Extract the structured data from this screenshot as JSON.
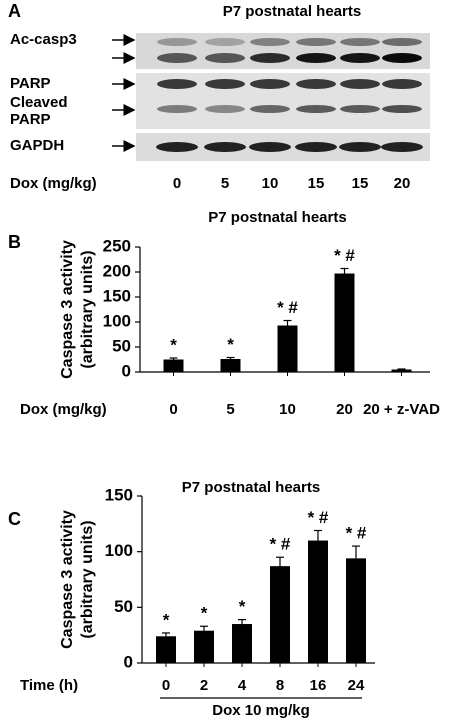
{
  "panel_labels": [
    "A",
    "B",
    "C"
  ],
  "blot": {
    "title": "P7 postnatal hearts",
    "row_labels": [
      [
        "Ac-casp3"
      ],
      [
        "PARP"
      ],
      [
        "Cleaved",
        "PARP"
      ],
      [
        "GAPDH"
      ]
    ],
    "x_label": "Dox (mg/kg)",
    "lanes": [
      "0",
      "5",
      "10",
      "15",
      "15",
      "20"
    ]
  },
  "chart_data": [
    {
      "type": "bar",
      "title": "P7 postnatal hearts",
      "y_label": [
        "Caspase 3 activity",
        "(arbitrary units)"
      ],
      "x_label": "Dox (mg/kg)",
      "categories": [
        "0",
        "5",
        "10",
        "20",
        "20 + z-VAD"
      ],
      "values": [
        25,
        26,
        93,
        197,
        5
      ],
      "errors": [
        3,
        3,
        10,
        10,
        1
      ],
      "annotations": [
        "*",
        "*",
        "* #",
        "* #",
        null
      ],
      "color": "#000000",
      "ylim": [
        0,
        250
      ],
      "yticks": [
        0,
        50,
        100,
        150,
        200,
        250
      ]
    },
    {
      "type": "bar",
      "title": "P7 postnatal hearts",
      "y_label": [
        "Caspase 3 activity",
        "(arbitrary units)"
      ],
      "x_label": "Time (h)",
      "categories": [
        "0",
        "2",
        "4",
        "8",
        "16",
        "24"
      ],
      "values": [
        24,
        29,
        35,
        87,
        110,
        94
      ],
      "errors": [
        3,
        4,
        4,
        8,
        9,
        11
      ],
      "annotations": [
        "*",
        "*",
        "*",
        "* #",
        "* #",
        "* #"
      ],
      "group_label": "Dox 10 mg/kg",
      "color": "#000000",
      "ylim": [
        0,
        150
      ],
      "yticks": [
        0,
        50,
        100,
        150
      ]
    }
  ]
}
